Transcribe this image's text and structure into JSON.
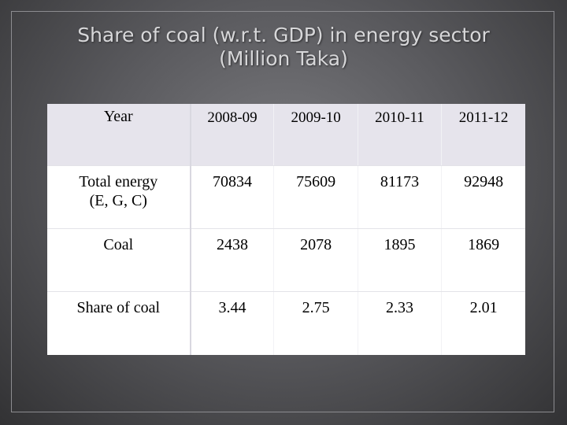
{
  "slide": {
    "title_line1": "Share of coal (w.r.t. GDP) in energy sector",
    "title_line2": "(Million Taka)"
  },
  "table": {
    "header": {
      "label": "Year",
      "years": [
        "2008-09",
        "2009-10",
        "2010-11",
        "2011-12"
      ]
    },
    "rows": [
      {
        "label_line1": "Total energy",
        "label_line2": "(E, G, C)",
        "values": [
          "70834",
          "75609",
          "81173",
          "92948"
        ]
      },
      {
        "label_line1": "Coal",
        "values": [
          "2438",
          "2078",
          "1895",
          "1869"
        ]
      },
      {
        "label_line1": "Share of coal",
        "values": [
          "3.44",
          "2.75",
          "2.33",
          "2.01"
        ]
      }
    ]
  }
}
